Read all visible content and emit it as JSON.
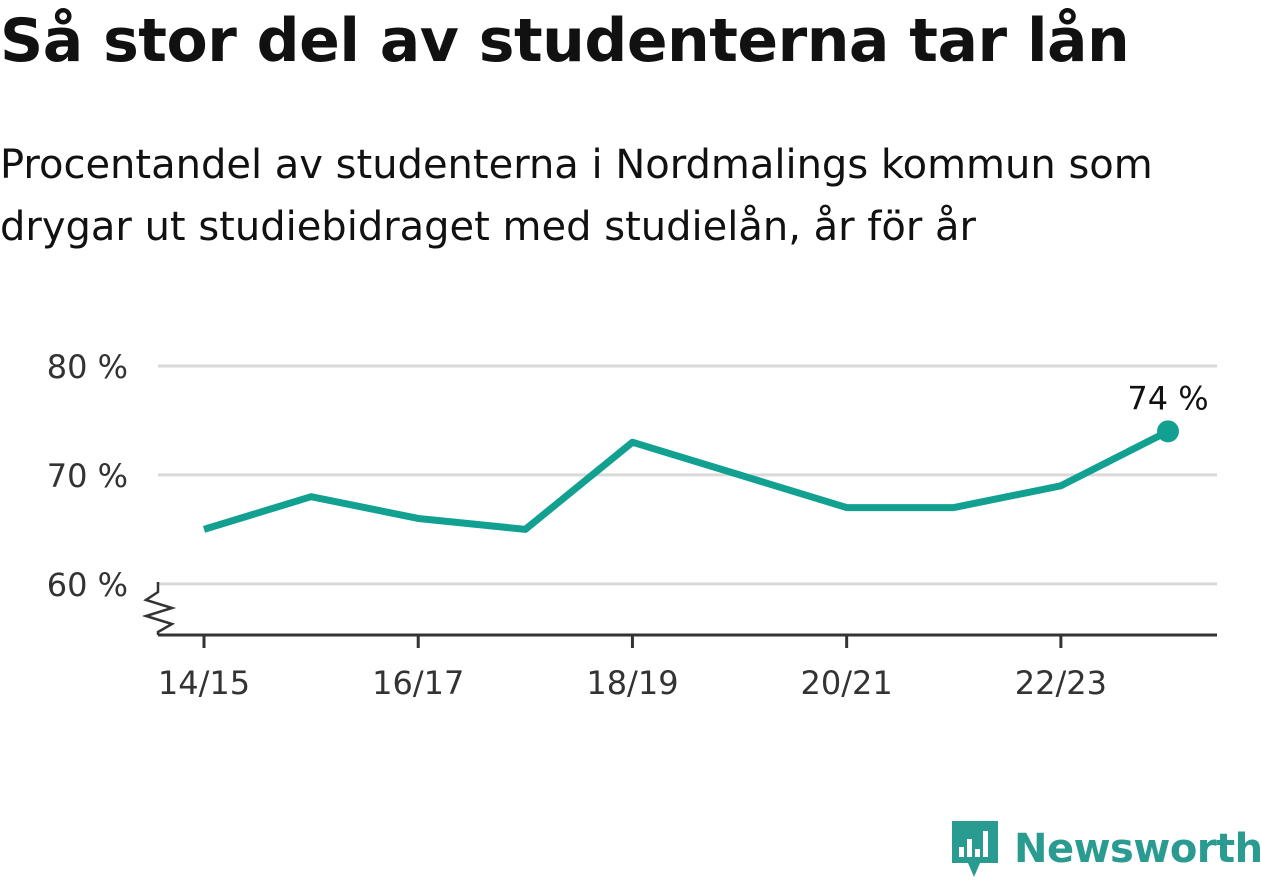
{
  "title": "Så stor del av studenterna tar lån",
  "subtitle_lines": [
    "Procentandel av studenterna i Nordmalings kommun som",
    "drygar ut studiebidraget med studielån, år för år"
  ],
  "brand": {
    "name": "Newsworthy",
    "icon": "newsworthy-logo-icon",
    "color": "#2a9b91"
  },
  "chart_data": {
    "type": "line",
    "x": [
      "14/15",
      "15/16",
      "16/17",
      "17/18",
      "18/19",
      "19/20",
      "20/21",
      "21/22",
      "22/23",
      "23/24"
    ],
    "series": [
      {
        "values": [
          65,
          68,
          66,
          65,
          73,
          70,
          67,
          67,
          69,
          74
        ],
        "color": "#12a091"
      }
    ],
    "xticks": [
      "14/15",
      "16/17",
      "18/19",
      "20/21",
      "22/23"
    ],
    "yticks": [
      60,
      70,
      80
    ],
    "ytick_labels": [
      "60 %",
      "70 %",
      "80 %"
    ],
    "ylim": [
      55.3,
      80
    ],
    "end_label": "74 %",
    "grid": true,
    "axis_break": true
  }
}
